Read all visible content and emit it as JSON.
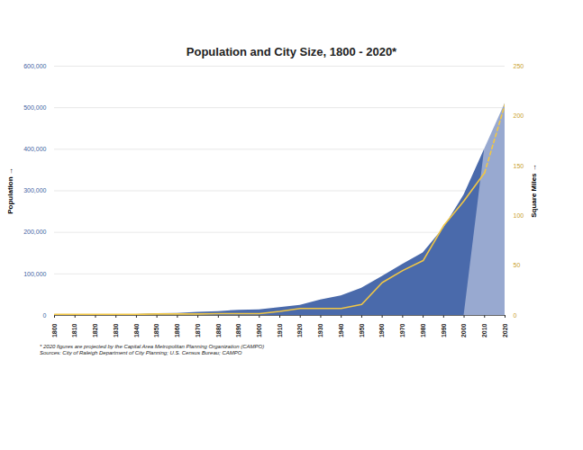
{
  "chart_data": {
    "type": "area",
    "title": "Population and City Size, 1800 - 2020*",
    "annotations": [
      "* 2020 figures are projected by the Capital Area Metropolitan Planning Organization (CAMPO)",
      "Sources: City of Raleigh Department of City Planning; U.S. Census Bureau; CAMPO"
    ],
    "ylabel": "Population",
    "y2label": "Square Miles",
    "x": [
      1800,
      1810,
      1820,
      1830,
      1840,
      1850,
      1860,
      1870,
      1880,
      1890,
      1900,
      1910,
      1920,
      1930,
      1940,
      1950,
      1960,
      1970,
      1980,
      1990,
      2000,
      2010,
      2020
    ],
    "xlim": [
      1800,
      2020
    ],
    "xticks": [
      1800,
      1810,
      1820,
      1830,
      1840,
      1850,
      1860,
      1870,
      1880,
      1890,
      1900,
      1910,
      1920,
      1930,
      1940,
      1950,
      1960,
      1970,
      1980,
      1990,
      2000,
      2010,
      2020
    ],
    "ylim": [
      0,
      600000
    ],
    "yticks": [
      0,
      {
        "value": 100000,
        "label": "100,000"
      },
      {
        "value": 200000,
        "label": "200,000"
      },
      {
        "value": 300000,
        "label": "300,000"
      },
      {
        "value": 400000,
        "label": "400,000"
      },
      {
        "value": 500000,
        "label": "500,000"
      },
      {
        "value": 600000,
        "label": "600,000"
      }
    ],
    "y2lim": [
      0,
      250
    ],
    "y2ticks": [
      0,
      50,
      100,
      150,
      200,
      250
    ],
    "grid": true,
    "series": [
      {
        "name": "Population",
        "type": "area",
        "color": "#4a6aab",
        "values": [
          669,
          1000,
          1500,
          1700,
          2200,
          4500,
          4800,
          7800,
          9300,
          12700,
          13600,
          19200,
          24400,
          37400,
          46900,
          65700,
          93900,
          122800,
          150300,
          210000,
          290000,
          400000,
          null
        ]
      },
      {
        "name": "Population",
        "type": "area",
        "color": "#98a9d0",
        "values": [
          null,
          null,
          null,
          null,
          null,
          null,
          null,
          null,
          null,
          null,
          null,
          null,
          null,
          null,
          null,
          null,
          null,
          null,
          null,
          null,
          null,
          400000,
          510000
        ]
      },
      {
        "name": "Square Miles",
        "type": "line",
        "axis": "y2",
        "color": "#f2c744",
        "line_style": "solid",
        "values": [
          1,
          1,
          1,
          1,
          1,
          1.5,
          1.5,
          1.5,
          1.8,
          1.8,
          1.8,
          4,
          7,
          7,
          7,
          11,
          33,
          45,
          55,
          90,
          115,
          143,
          null
        ]
      },
      {
        "name": "Square Miles",
        "type": "line",
        "axis": "y2",
        "color": "#f2c744",
        "line_style": "dashed",
        "values": [
          null,
          null,
          null,
          null,
          null,
          null,
          null,
          null,
          null,
          null,
          null,
          null,
          null,
          null,
          null,
          null,
          null,
          null,
          null,
          null,
          null,
          143,
          212
        ]
      }
    ]
  }
}
